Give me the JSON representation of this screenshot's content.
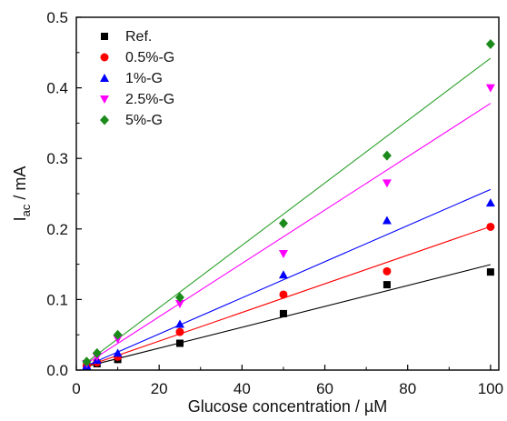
{
  "chart_data": {
    "type": "scatter",
    "xlabel": "Glucose concentration / µM",
    "ylabel": "I",
    "ylabel_subscript": "ac",
    "ylabel_suffix": " / mA",
    "xlim": [
      0,
      102
    ],
    "ylim": [
      0,
      0.5
    ],
    "xticks": [
      0,
      20,
      40,
      60,
      80,
      100
    ],
    "yticks": [
      0.0,
      0.1,
      0.2,
      0.3,
      0.4,
      0.5
    ],
    "xtick_labels": [
      "0",
      "20",
      "40",
      "60",
      "80",
      "100"
    ],
    "ytick_labels": [
      "0.0",
      "0.1",
      "0.2",
      "0.3",
      "0.4",
      "0.5"
    ],
    "grid": false,
    "legend_position": "top-left",
    "x": [
      2.5,
      5,
      10,
      25,
      50,
      75,
      100
    ],
    "series": [
      {
        "name": "Ref.",
        "marker": "square",
        "color": "#000000",
        "fit_color": "#000000",
        "values": [
          0.005,
          0.009,
          0.015,
          0.038,
          0.08,
          0.121,
          0.139
        ],
        "fit": [
          0.0015,
          0.00148
        ]
      },
      {
        "name": "0.5%-G",
        "marker": "circle",
        "color": "#ff0000",
        "fit_color": "#ff0000",
        "values": [
          0.006,
          0.011,
          0.019,
          0.054,
          0.107,
          0.14,
          0.203
        ],
        "fit": [
          0.0005,
          0.00203
        ]
      },
      {
        "name": "1%-G",
        "marker": "triangle-up",
        "color": "#0000ff",
        "fit_color": "#0000ff",
        "values": [
          0.006,
          0.014,
          0.024,
          0.065,
          0.135,
          0.212,
          0.237
        ],
        "fit": [
          0.0,
          0.00256
        ]
      },
      {
        "name": "2.5%-G",
        "marker": "triangle-down",
        "color": "#ff00ff",
        "fit_color": "#ff00ff",
        "values": [
          0.009,
          0.019,
          0.044,
          0.094,
          0.165,
          0.265,
          0.4
        ],
        "fit": [
          0.0,
          0.00378
        ]
      },
      {
        "name": "5%-G",
        "marker": "diamond",
        "color": "#1a8a1a",
        "fit_color": "#2aa02a",
        "values": [
          0.012,
          0.024,
          0.05,
          0.103,
          0.208,
          0.304,
          0.462
        ],
        "fit": [
          0.0,
          0.00442
        ]
      }
    ]
  }
}
